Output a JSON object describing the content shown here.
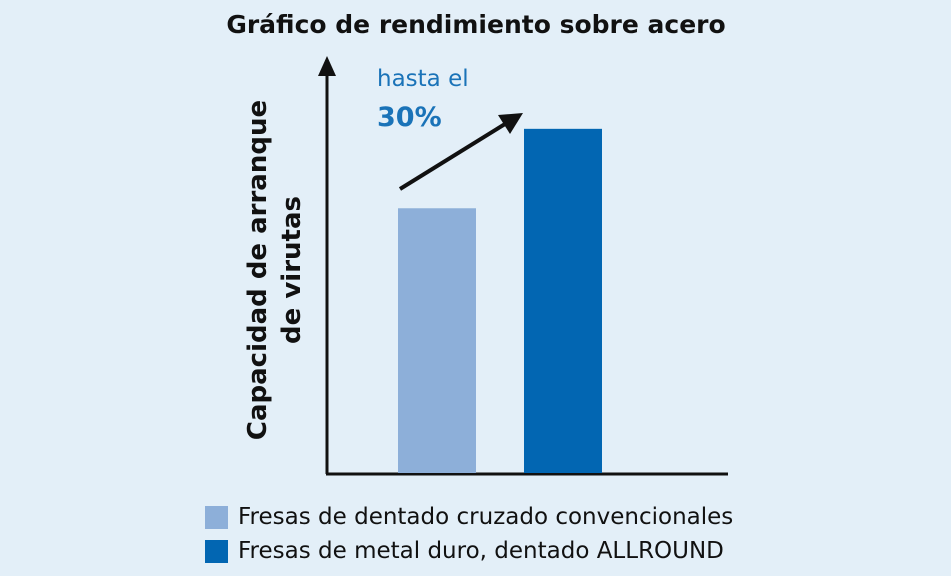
{
  "chart_data": {
    "type": "bar",
    "title": "Gráfico de rendimiento sobre acero",
    "ylabel": "Capacidad de arranque de virutas",
    "ylabel_lines": [
      "Capacidad de arranque",
      "de virutas"
    ],
    "xlabel": "",
    "categories": [
      "Fresas de dentado cruzado convencionales",
      "Fresas de metal duro, dentado ALLROUND"
    ],
    "values": [
      100,
      130
    ],
    "ylim": [
      0,
      156
    ],
    "colors": [
      "#8dafd9",
      "#0266b2"
    ],
    "grid": false,
    "legend_position": "bottom",
    "annotation": {
      "line1": "hasta el",
      "line2": "30%"
    }
  }
}
